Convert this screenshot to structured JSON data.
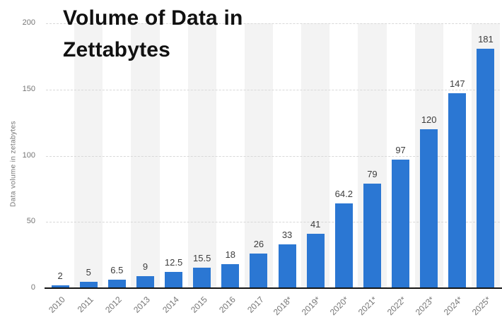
{
  "chart_data": {
    "type": "bar",
    "title": "Volume of Data in Zettabytes",
    "title_lines": [
      "Volume of Data in",
      "Zettabytes"
    ],
    "ylabel": "Data volume in zetabytes",
    "xlabel": "",
    "categories": [
      "2010",
      "2011",
      "2012",
      "2013",
      "2014",
      "2015",
      "2016",
      "2017",
      "2018*",
      "2019*",
      "2020*",
      "2021*",
      "2022*",
      "2023*",
      "2024*",
      "2025*"
    ],
    "values": [
      2,
      5,
      6.5,
      9,
      12.5,
      15.5,
      18,
      26,
      33,
      41,
      64.2,
      79,
      97,
      120,
      147,
      181
    ],
    "value_labels": [
      "2",
      "5",
      "6.5",
      "9",
      "12.5",
      "15.5",
      "18",
      "26",
      "33",
      "41",
      "64.2",
      "79",
      "97",
      "120",
      "147",
      "181"
    ],
    "ylim": [
      0,
      200
    ],
    "yticks": [
      0,
      50,
      100,
      150,
      200
    ],
    "grid": "horizontal dashed, on",
    "legend": "none",
    "colors": {
      "bar": "#2b77d3",
      "stripe": "#f3f3f3",
      "gridline": "#d8d8d8",
      "axis_line": "#141414",
      "tick_label": "#757575",
      "value_label": "#3d3d3d",
      "title": "#111111"
    }
  }
}
